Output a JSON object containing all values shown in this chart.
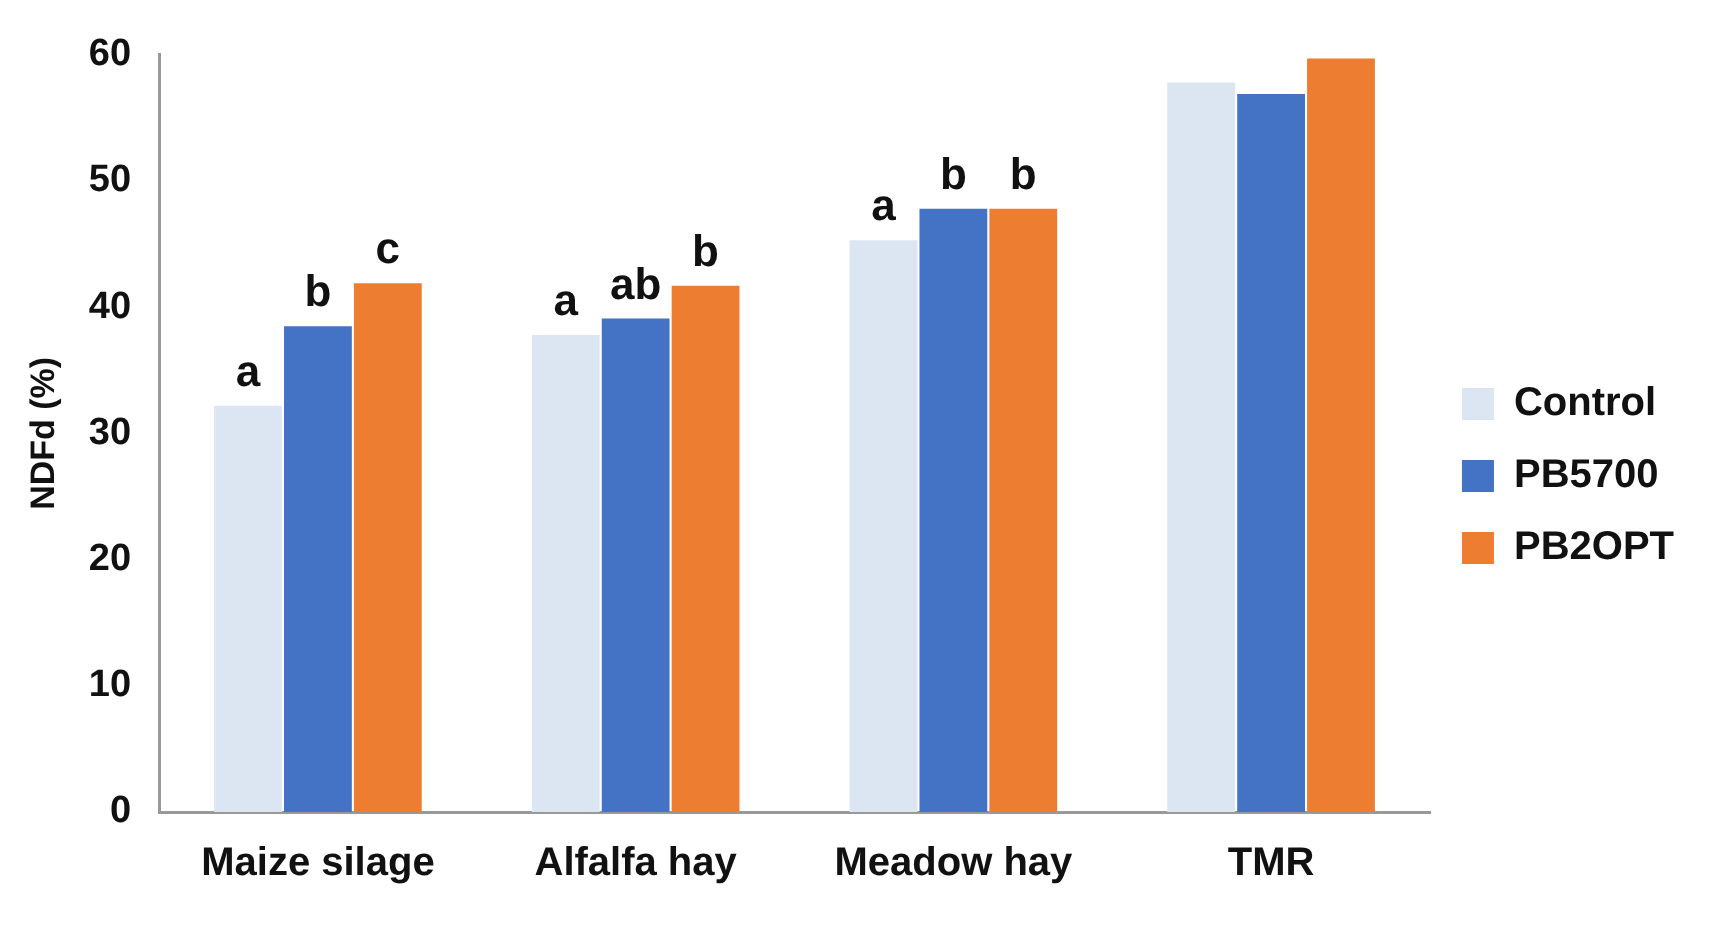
{
  "chart_data": {
    "type": "bar",
    "ylabel": "NDFd (%)",
    "categories": [
      "Maize silage",
      "Alfalfa hay",
      "Meadow hay",
      "TMR"
    ],
    "series": [
      {
        "name": "Control",
        "color": "#dce6f2",
        "values": [
          32.2,
          37.8,
          45.3,
          57.8
        ],
        "value_labels": [
          "a",
          "a",
          "a",
          null
        ]
      },
      {
        "name": "PB5700",
        "color": "#4472c4",
        "values": [
          38.5,
          39.1,
          47.8,
          56.9
        ],
        "value_labels": [
          "b",
          "ab",
          "b",
          null
        ]
      },
      {
        "name": "PB2OPT",
        "color": "#ed7d31",
        "values": [
          41.9,
          41.7,
          47.8,
          59.7
        ],
        "value_labels": [
          "c",
          "b",
          "b",
          null
        ]
      }
    ],
    "ylim": [
      0,
      60
    ],
    "yticks": [
      0,
      10,
      20,
      30,
      40,
      50,
      60
    ],
    "grid": false,
    "legend": "right"
  }
}
